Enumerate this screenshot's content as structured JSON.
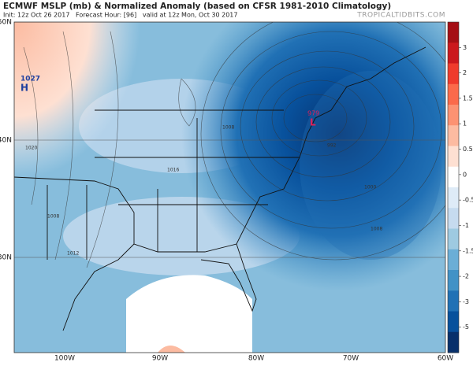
{
  "header": {
    "title": "ECMWF MSLP (mb) & Normalized Anomaly (based on CFSR 1981-2010 Climatology)",
    "subtitle": "Init: 12z Oct 26 2017   Forecast Hour: [96]   valid at 12z Mon, Oct 30 2017",
    "watermark": "TROPICALTIDBITS.COM"
  },
  "map": {
    "lat_labels": [
      "50N",
      "40N",
      "30N"
    ],
    "lon_labels": [
      "100W",
      "90W",
      "80W",
      "70W",
      "60W"
    ],
    "high": {
      "value": "1027",
      "letter": "H"
    },
    "low": {
      "value": "979",
      "letter": "L"
    },
    "contour_labels": [
      "1020",
      "1008",
      "1012",
      "1016",
      "1008",
      "1000",
      "1008",
      "992"
    ]
  },
  "colorbar": {
    "ticks": [
      3,
      2,
      1.5,
      1,
      0.5,
      0,
      -0.5,
      -1,
      -1.5,
      -2,
      -3,
      -5
    ],
    "colors": [
      "#a50f15",
      "#cb181d",
      "#ef3b2c",
      "#fb6a4a",
      "#fc9272",
      "#fcbba1",
      "#fee0d2",
      "#ffffff",
      "#deebf7",
      "#c6dbef",
      "#9ecae1",
      "#6baed6",
      "#4292c6",
      "#2171b5",
      "#08519c",
      "#08306b"
    ]
  }
}
